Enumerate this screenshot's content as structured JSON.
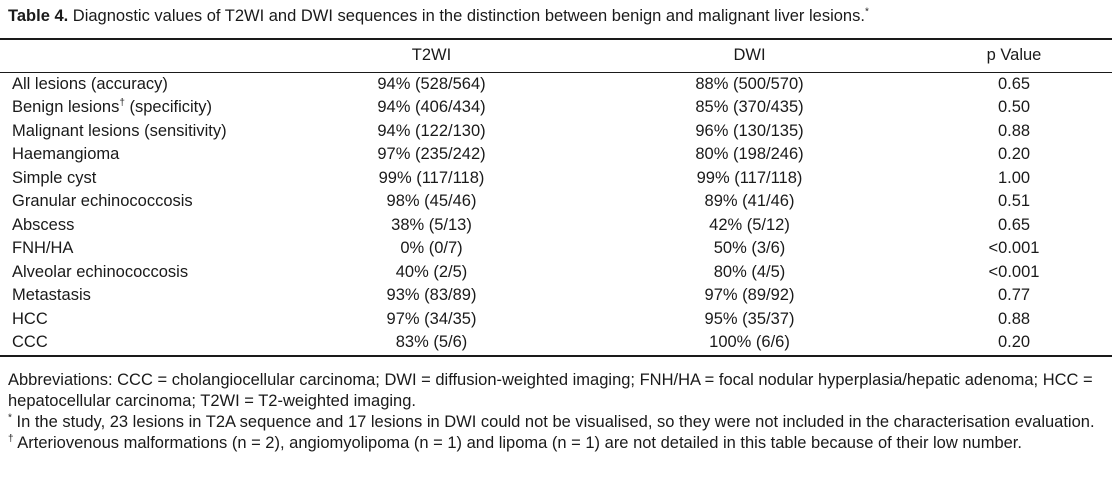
{
  "caption": {
    "label": "Table 4.",
    "text": " Diagnostic values of T2WI and DWI sequences in the distinction between benign and malignant liver lesions.",
    "marker": "*"
  },
  "table": {
    "headers": [
      "",
      "T2WI",
      "DWI",
      "p Value"
    ],
    "rows": [
      {
        "label": "All lesions (accuracy)",
        "sup": "",
        "label_suffix": "",
        "t2wi": "94% (528/564)",
        "dwi": "88% (500/570)",
        "p": "0.65"
      },
      {
        "label": "Benign lesions",
        "sup": "†",
        "label_suffix": " (specificity)",
        "t2wi": "94% (406/434)",
        "dwi": "85% (370/435)",
        "p": "0.50"
      },
      {
        "label": "Malignant lesions (sensitivity)",
        "sup": "",
        "label_suffix": "",
        "t2wi": "94% (122/130)",
        "dwi": "96% (130/135)",
        "p": "0.88"
      },
      {
        "label": "Haemangioma",
        "sup": "",
        "label_suffix": "",
        "t2wi": "97% (235/242)",
        "dwi": "80% (198/246)",
        "p": "0.20"
      },
      {
        "label": "Simple cyst",
        "sup": "",
        "label_suffix": "",
        "t2wi": "99% (117/118)",
        "dwi": "99% (117/118)",
        "p": "1.00"
      },
      {
        "label": "Granular echinococcosis",
        "sup": "",
        "label_suffix": "",
        "t2wi": "98% (45/46)",
        "dwi": "89% (41/46)",
        "p": "0.51"
      },
      {
        "label": "Abscess",
        "sup": "",
        "label_suffix": "",
        "t2wi": "38% (5/13)",
        "dwi": "42% (5/12)",
        "p": "0.65"
      },
      {
        "label": "FNH/HA",
        "sup": "",
        "label_suffix": "",
        "t2wi": "0% (0/7)",
        "dwi": "50% (3/6)",
        "p": "<0.001"
      },
      {
        "label": "Alveolar echinococcosis",
        "sup": "",
        "label_suffix": "",
        "t2wi": "40% (2/5)",
        "dwi": "80% (4/5)",
        "p": "<0.001"
      },
      {
        "label": "Metastasis",
        "sup": "",
        "label_suffix": "",
        "t2wi": "93% (83/89)",
        "dwi": "97% (89/92)",
        "p": "0.77"
      },
      {
        "label": "HCC",
        "sup": "",
        "label_suffix": "",
        "t2wi": "97% (34/35)",
        "dwi": "95% (35/37)",
        "p": "0.88"
      },
      {
        "label": "CCC",
        "sup": "",
        "label_suffix": "",
        "t2wi": "83% (5/6)",
        "dwi": "100% (6/6)",
        "p": "0.20"
      }
    ]
  },
  "notes": {
    "abbreviations": "Abbreviations: CCC = cholangiocellular carcinoma; DWI = diffusion-weighted imaging; FNH/HA = focal nodular hyperplasia/hepatic adenoma; HCC = hepatocellular carcinoma; T2WI = T2-weighted imaging.",
    "footnote1_marker": "*",
    "footnote1": " In the study, 23 lesions in T2A sequence and 17 lesions in DWI could not be visualised, so they were not included in the characterisation evaluation.",
    "footnote2_marker": "†",
    "footnote2": " Arteriovenous malformations (n = 2), angiomyolipoma (n = 1) and lipoma (n = 1) are not detailed in this table because of their low number."
  }
}
